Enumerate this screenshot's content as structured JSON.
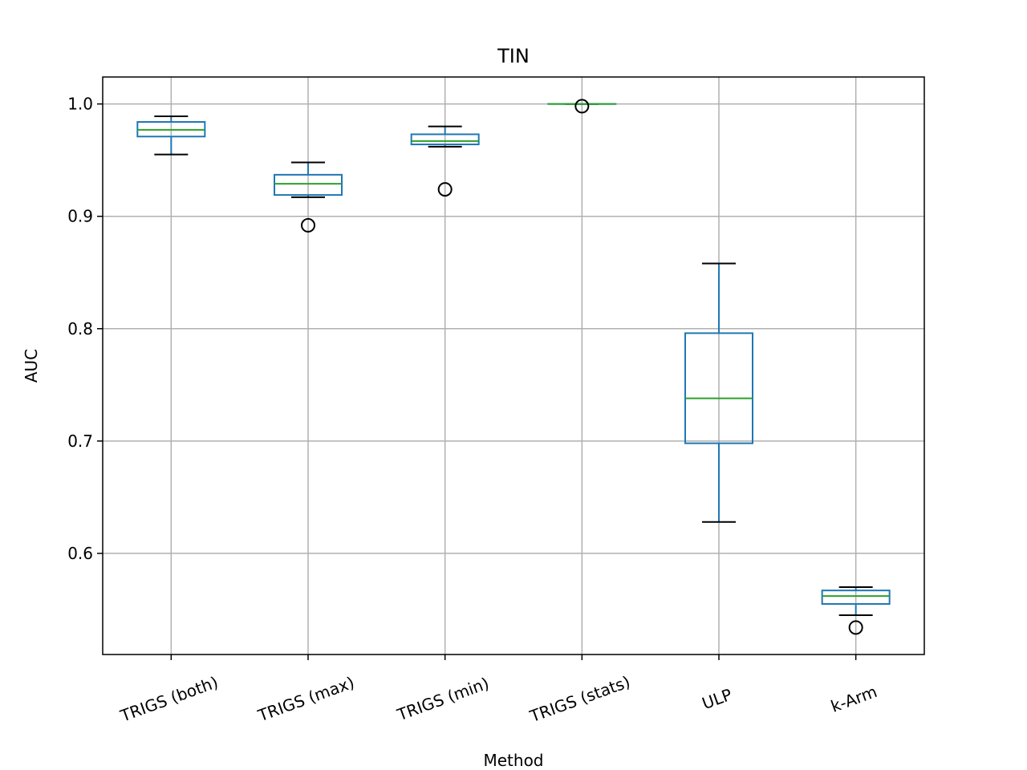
{
  "chart_data": {
    "type": "box",
    "title": "TIN",
    "xlabel": "Method",
    "ylabel": "AUC",
    "ylim": [
      0.51,
      1.024
    ],
    "yticks": [
      0.6,
      0.7,
      0.8,
      0.9,
      1.0
    ],
    "ytick_labels": [
      "0.6",
      "0.7",
      "0.8",
      "0.9",
      "1.0"
    ],
    "grid": true,
    "categories": [
      "TRIGS (both)",
      "TRIGS (max)",
      "TRIGS (min)",
      "TRIGS (stats)",
      "ULP",
      "k-Arm"
    ],
    "boxes": [
      {
        "name": "TRIGS (both)",
        "whisker_low": 0.955,
        "q1": 0.971,
        "median": 0.977,
        "q3": 0.984,
        "whisker_high": 0.989,
        "outliers": []
      },
      {
        "name": "TRIGS (max)",
        "whisker_low": 0.917,
        "q1": 0.919,
        "median": 0.929,
        "q3": 0.937,
        "whisker_high": 0.948,
        "outliers": [
          0.892
        ]
      },
      {
        "name": "TRIGS (min)",
        "whisker_low": 0.962,
        "q1": 0.964,
        "median": 0.967,
        "q3": 0.973,
        "whisker_high": 0.98,
        "outliers": [
          0.924
        ]
      },
      {
        "name": "TRIGS (stats)",
        "whisker_low": 1.0,
        "q1": 1.0,
        "median": 1.0,
        "q3": 1.0,
        "whisker_high": 1.0,
        "outliers": [
          0.998
        ]
      },
      {
        "name": "ULP",
        "whisker_low": 0.628,
        "q1": 0.698,
        "median": 0.738,
        "q3": 0.796,
        "whisker_high": 0.858,
        "outliers": []
      },
      {
        "name": "k-Arm",
        "whisker_low": 0.545,
        "q1": 0.555,
        "median": 0.562,
        "q3": 0.567,
        "whisker_high": 0.57,
        "outliers": [
          0.534
        ]
      }
    ],
    "colors": {
      "box": "#1f77b4",
      "median": "#2ca02c",
      "whisker_cap": "#000000",
      "grid": "#b0b0b0",
      "axes": "#000000"
    }
  }
}
